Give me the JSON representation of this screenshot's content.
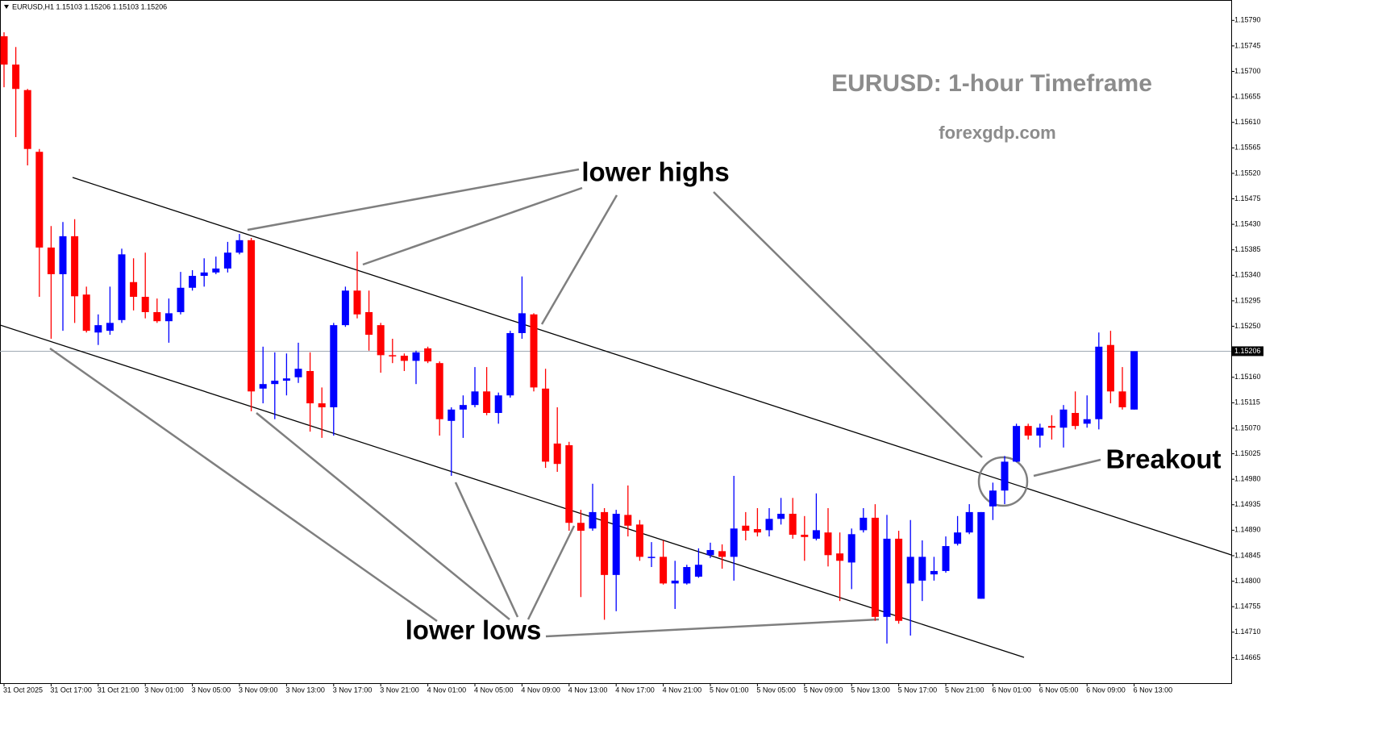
{
  "chart_data": {
    "type": "candlestick",
    "header": "EURUSD,H1  1.15103 1.15206 1.15103 1.15206",
    "title": "EURUSD: 1-hour Timeframe",
    "subtitle": "forexgdp.com",
    "annotations": [
      "lower highs",
      "lower lows",
      "Breakout"
    ],
    "up_color": "#0000ff",
    "down_color": "#ff0000",
    "current_price": 1.15206,
    "ylim": [
      1.1462,
      1.15826
    ],
    "yticks": [
      {
        "value": 1.1579,
        "label": "1.15790"
      },
      {
        "value": 1.15745,
        "label": "1.15745"
      },
      {
        "value": 1.157,
        "label": "1.15700"
      },
      {
        "value": 1.15655,
        "label": "1.15655"
      },
      {
        "value": 1.1561,
        "label": "1.15610"
      },
      {
        "value": 1.15565,
        "label": "1.15565"
      },
      {
        "value": 1.1552,
        "label": "1.15520"
      },
      {
        "value": 1.15475,
        "label": "1.15475"
      },
      {
        "value": 1.1543,
        "label": "1.15430"
      },
      {
        "value": 1.15385,
        "label": "1.15385"
      },
      {
        "value": 1.1534,
        "label": "1.15340"
      },
      {
        "value": 1.15295,
        "label": "1.15295"
      },
      {
        "value": 1.1525,
        "label": "1.15250"
      },
      {
        "value": 1.1516,
        "label": "1.15160"
      },
      {
        "value": 1.15115,
        "label": "1.15115"
      },
      {
        "value": 1.1507,
        "label": "1.15070"
      },
      {
        "value": 1.15025,
        "label": "1.15025"
      },
      {
        "value": 1.1498,
        "label": "1.14980"
      },
      {
        "value": 1.14935,
        "label": "1.14935"
      },
      {
        "value": 1.1489,
        "label": "1.14890"
      },
      {
        "value": 1.14845,
        "label": "1.14845"
      },
      {
        "value": 1.148,
        "label": "1.14800"
      },
      {
        "value": 1.14755,
        "label": "1.14755"
      },
      {
        "value": 1.1471,
        "label": "1.14710"
      },
      {
        "value": 1.14665,
        "label": "1.14665"
      }
    ],
    "categories": [
      "31 Oct 2025",
      null,
      null,
      null,
      "31 Oct 17:00",
      null,
      null,
      null,
      "31 Oct 21:00",
      null,
      null,
      null,
      "3 Nov 01:00",
      null,
      null,
      null,
      "3 Nov 05:00",
      null,
      null,
      null,
      "3 Nov 09:00",
      null,
      null,
      null,
      "3 Nov 13:00",
      null,
      null,
      null,
      "3 Nov 17:00",
      null,
      null,
      null,
      "3 Nov 21:00",
      null,
      null,
      null,
      "4 Nov 01:00",
      null,
      null,
      null,
      "4 Nov 05:00",
      null,
      null,
      null,
      "4 Nov 09:00",
      null,
      null,
      null,
      "4 Nov 13:00",
      null,
      null,
      null,
      "4 Nov 17:00",
      null,
      null,
      null,
      "4 Nov 21:00",
      null,
      null,
      null,
      "5 Nov 01:00",
      null,
      null,
      null,
      "5 Nov 05:00",
      null,
      null,
      null,
      "5 Nov 09:00",
      null,
      null,
      null,
      "5 Nov 13:00",
      null,
      null,
      null,
      "5 Nov 17:00",
      null,
      null,
      null,
      "5 Nov 21:00",
      null,
      null,
      null,
      "6 Nov 01:00",
      null,
      null,
      null,
      "6 Nov 05:00",
      null,
      null,
      null,
      "6 Nov 09:00",
      null,
      null,
      null,
      "6 Nov 13:00"
    ],
    "open": [
      1.15762,
      1.15712,
      1.15667,
      1.15558,
      1.15389,
      1.15342,
      1.15409,
      1.15306,
      1.15239,
      1.15242,
      1.15261,
      1.15328,
      1.15302,
      1.15275,
      1.15259,
      1.15275,
      1.15318,
      1.15339,
      1.15345,
      1.15352,
      1.1538,
      1.15402,
      1.1514,
      1.15148,
      1.15154,
      1.1516,
      1.15171,
      1.15114,
      1.15107,
      1.15252,
      1.15313,
      1.15275,
      1.15252,
      1.15199,
      1.15198,
      1.15189,
      1.15211,
      1.15185,
      1.15083,
      1.15103,
      1.15111,
      1.15135,
      1.15097,
      1.15128,
      1.15238,
      1.15271,
      1.1514,
      1.15043,
      1.1504,
      1.14903,
      1.14893,
      1.14922,
      1.14811,
      1.14917,
      1.149,
      1.14841,
      1.14843,
      1.14796,
      1.14796,
      1.14808,
      1.14846,
      1.14853,
      1.14843,
      1.14898,
      1.14892,
      1.1489,
      1.1491,
      1.14919,
      1.14882,
      1.14875,
      1.14886,
      1.14849,
      1.14833,
      1.1489,
      1.14912,
      1.14737,
      1.14875,
      1.14796,
      1.14801,
      1.14812,
      1.14818,
      1.14866,
      1.14886,
      1.14769,
      1.14932,
      1.1496,
      1.15011,
      1.15074,
      1.15057,
      1.15074,
      1.15071,
      1.15097,
      1.15078,
      1.15086,
      1.15217,
      1.15135,
      1.15103
    ],
    "high": [
      1.15769,
      1.15743,
      1.15669,
      1.15563,
      1.15427,
      1.15434,
      1.15439,
      1.1532,
      1.15271,
      1.1532,
      1.15387,
      1.1537,
      1.1538,
      1.15299,
      1.15299,
      1.15346,
      1.15349,
      1.1537,
      1.15373,
      1.15399,
      1.15413,
      1.15406,
      1.15214,
      1.15204,
      1.15202,
      1.15221,
      1.15204,
      1.15142,
      1.15256,
      1.1532,
      1.15382,
      1.15313,
      1.15256,
      1.15228,
      1.15202,
      1.15207,
      1.15214,
      1.15188,
      1.15107,
      1.15128,
      1.15178,
      1.15178,
      1.15133,
      1.15242,
      1.15338,
      1.15273,
      1.15175,
      1.15107,
      1.15046,
      1.14926,
      1.14972,
      1.14929,
      1.14926,
      1.14969,
      1.14908,
      1.14869,
      1.14872,
      1.14836,
      1.14829,
      1.14858,
      1.14868,
      1.14865,
      1.14986,
      1.14922,
      1.14929,
      1.14929,
      1.14947,
      1.14947,
      1.14915,
      1.14955,
      1.14929,
      1.14886,
      1.14893,
      1.14929,
      1.14936,
      1.14917,
      1.14889,
      1.14908,
      1.14872,
      1.14843,
      1.14879,
      1.14915,
      1.14936,
      1.14922,
      1.14974,
      1.15021,
      1.15078,
      1.15078,
      1.15078,
      1.15093,
      1.15111,
      1.15135,
      1.15128,
      1.15239,
      1.15242,
      1.15178,
      1.15206
    ],
    "low": [
      1.15672,
      1.15584,
      1.15534,
      1.15302,
      1.15228,
      1.15242,
      1.15256,
      1.15239,
      1.15217,
      1.15235,
      1.15256,
      1.15278,
      1.15264,
      1.15256,
      1.15221,
      1.15271,
      1.15313,
      1.1532,
      1.15342,
      1.15345,
      1.15377,
      1.151,
      1.15114,
      1.15086,
      1.15128,
      1.1515,
      1.15064,
      1.15053,
      1.15057,
      1.15249,
      1.15264,
      1.15207,
      1.15168,
      1.15185,
      1.15171,
      1.15148,
      1.15185,
      1.15057,
      1.14986,
      1.15053,
      1.15107,
      1.15093,
      1.15078,
      1.15124,
      1.15228,
      1.15135,
      1.15,
      1.14993,
      1.14889,
      1.14772,
      1.14889,
      1.14732,
      1.14747,
      1.14879,
      1.14836,
      1.14825,
      1.14794,
      1.14751,
      1.14794,
      1.14806,
      1.14841,
      1.14822,
      1.14801,
      1.14872,
      1.14879,
      1.14879,
      1.149,
      1.14875,
      1.14836,
      1.14872,
      1.14826,
      1.14765,
      1.14786,
      1.14886,
      1.1473,
      1.1469,
      1.14725,
      1.14704,
      1.14765,
      1.14801,
      1.14815,
      1.14863,
      1.14883,
      1.14769,
      1.14908,
      1.14936,
      1.1501,
      1.1505,
      1.15036,
      1.1505,
      1.15036,
      1.15068,
      1.15071,
      1.15068,
      1.15114,
      1.15103,
      1.15103
    ],
    "close": [
      1.15712,
      1.15669,
      1.15563,
      1.15389,
      1.15342,
      1.15409,
      1.15303,
      1.15242,
      1.15252,
      1.15256,
      1.15377,
      1.15302,
      1.15275,
      1.15259,
      1.15273,
      1.15318,
      1.15339,
      1.15345,
      1.15352,
      1.1538,
      1.15402,
      1.15135,
      1.15148,
      1.15154,
      1.15158,
      1.15175,
      1.15114,
      1.15107,
      1.15252,
      1.15313,
      1.15271,
      1.15235,
      1.15199,
      1.15198,
      1.15189,
      1.15204,
      1.15188,
      1.15086,
      1.15103,
      1.15111,
      1.15135,
      1.15097,
      1.15128,
      1.15238,
      1.15273,
      1.15142,
      1.15011,
      1.15007,
      1.14903,
      1.14889,
      1.14922,
      1.14811,
      1.14919,
      1.14898,
      1.14843,
      1.14843,
      1.14796,
      1.14801,
      1.14825,
      1.14829,
      1.14855,
      1.14843,
      1.14893,
      1.14889,
      1.14886,
      1.1491,
      1.14919,
      1.14882,
      1.14878,
      1.1489,
      1.14846,
      1.14836,
      1.14883,
      1.14912,
      1.14737,
      1.14875,
      1.1473,
      1.14843,
      1.14843,
      1.14818,
      1.14862,
      1.14886,
      1.14922,
      1.14922,
      1.1496,
      1.15011,
      1.15074,
      1.15057,
      1.15071,
      1.15071,
      1.15103,
      1.15074,
      1.15086,
      1.15214,
      1.15135,
      1.15107,
      1.15206
    ]
  }
}
